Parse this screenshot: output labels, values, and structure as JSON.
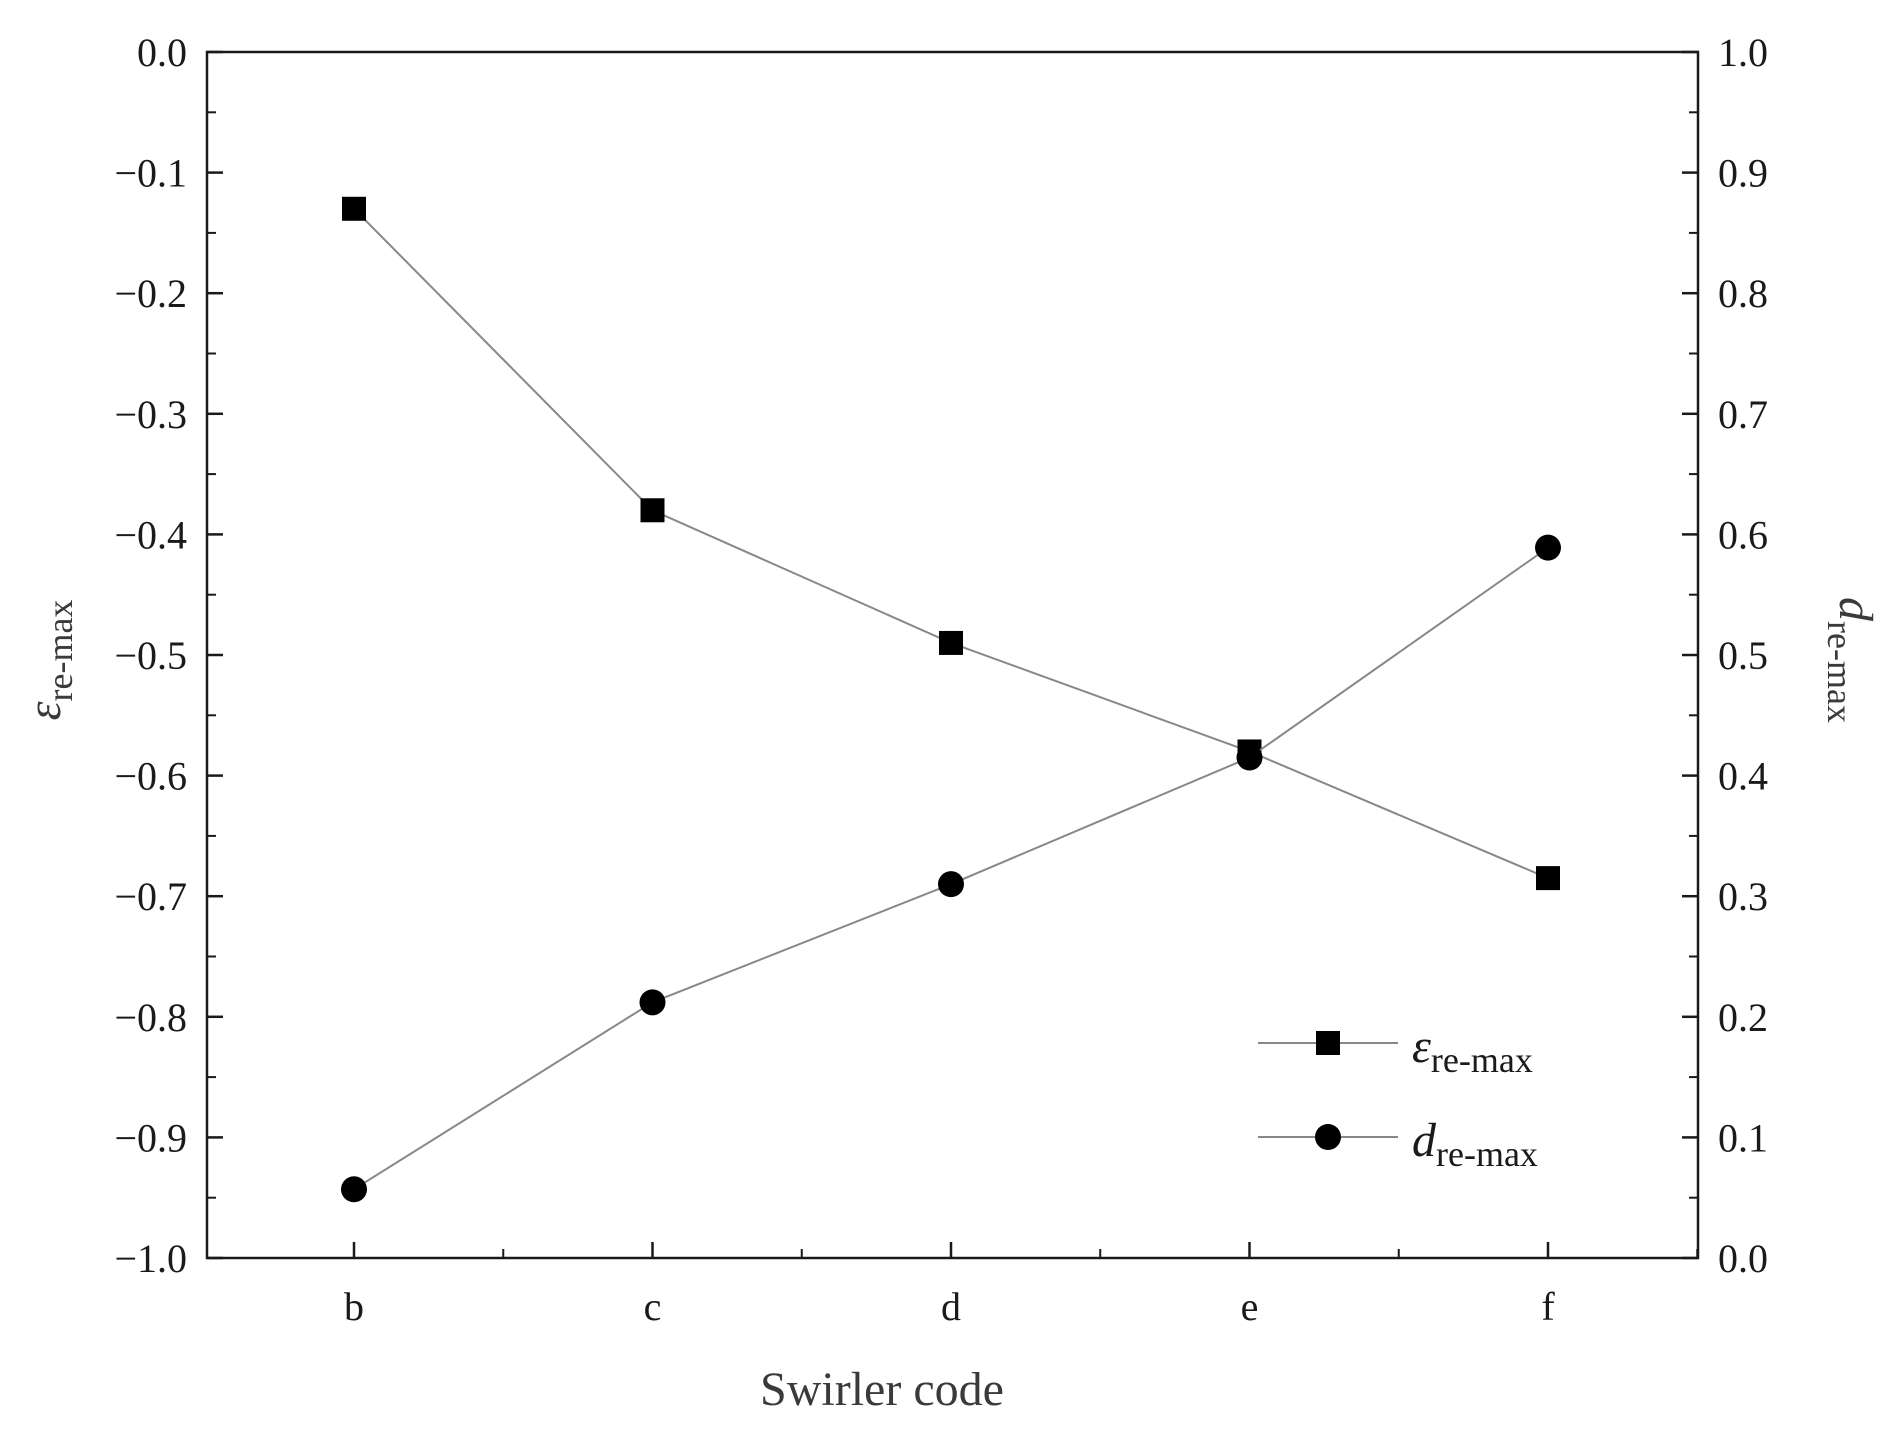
{
  "chart_data": {
    "type": "line",
    "xlabel": "Swirler code",
    "categories": [
      "b",
      "c",
      "d",
      "e",
      "f"
    ],
    "y_left": {
      "label_main": "ε",
      "label_sub": "re-max",
      "ylim": [
        -1.0,
        0.0
      ],
      "ticks": [
        "0.0",
        "−0.1",
        "−0.2",
        "−0.3",
        "−0.4",
        "−0.5",
        "−0.6",
        "−0.7",
        "−0.8",
        "−0.9",
        "−1.0"
      ]
    },
    "y_right": {
      "label_main": "d",
      "label_sub": "re-max",
      "ylim": [
        0.0,
        1.0
      ],
      "ticks": [
        "1.0",
        "0.9",
        "0.8",
        "0.7",
        "0.6",
        "0.5",
        "0.4",
        "0.3",
        "0.2",
        "0.1",
        "0.0"
      ]
    },
    "series": [
      {
        "name_main": "ε",
        "name_sub": "re-max",
        "axis": "left",
        "marker": "square",
        "values": [
          -0.13,
          -0.38,
          -0.49,
          -0.58,
          -0.685
        ]
      },
      {
        "name_main": "d",
        "name_sub": "re-max",
        "axis": "right",
        "marker": "circle",
        "values": [
          0.057,
          0.212,
          0.31,
          0.415,
          0.589
        ]
      }
    ],
    "grid": false,
    "legend_position": "bottom-right",
    "colors": {
      "line": "#888888",
      "marker": "#000000",
      "axis": "#1a1a1a"
    }
  }
}
